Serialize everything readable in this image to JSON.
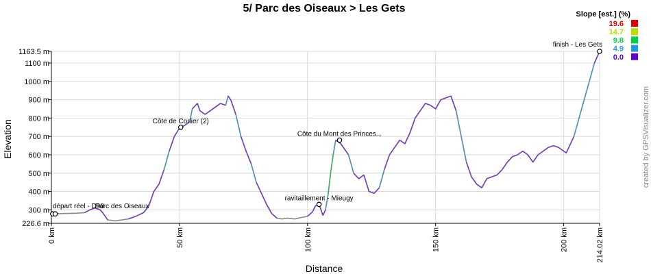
{
  "chart_data": {
    "type": "line",
    "title": "5/ Parc des Oiseaux > Les Gets",
    "xlabel": "Distance",
    "ylabel": "Elevation",
    "xlim": [
      0,
      214.02
    ],
    "ylim": [
      226.6,
      1163.5
    ],
    "x_ticks": [
      {
        "value": 0,
        "label": "0 km"
      },
      {
        "value": 50,
        "label": "50 km"
      },
      {
        "value": 100,
        "label": "100 km"
      },
      {
        "value": 150,
        "label": "150 km"
      },
      {
        "value": 200,
        "label": "200 km"
      },
      {
        "value": 214.02,
        "label": "214.02 km"
      }
    ],
    "y_ticks": [
      {
        "value": 226.6,
        "label": "226.6 m"
      },
      {
        "value": 300,
        "label": "300 m"
      },
      {
        "value": 400,
        "label": "400 m"
      },
      {
        "value": 500,
        "label": "500 m"
      },
      {
        "value": 600,
        "label": "600 m"
      },
      {
        "value": 700,
        "label": "700 m"
      },
      {
        "value": 800,
        "label": "800 m"
      },
      {
        "value": 900,
        "label": "900 m"
      },
      {
        "value": 1000,
        "label": "1000 m"
      },
      {
        "value": 1100,
        "label": "1100 m"
      },
      {
        "value": 1163.5,
        "label": "1163.5 m"
      }
    ],
    "grid": true,
    "legend": {
      "title": "Slope [est.] (%)",
      "position": "top-right",
      "entries": [
        {
          "label": "19.6",
          "color": "#dd0000"
        },
        {
          "label": "14.7",
          "color": "#bbdd00"
        },
        {
          "label": "9.8",
          "color": "#00cc44"
        },
        {
          "label": "4.9",
          "color": "#2299dd"
        },
        {
          "label": "0.0",
          "color": "#6600cc"
        }
      ]
    },
    "line_color": "#888888",
    "series": [
      {
        "x": [
          0,
          5,
          10,
          13,
          15,
          17,
          19,
          20,
          22,
          25,
          30,
          33,
          36,
          38,
          40,
          42,
          44,
          46,
          48,
          50,
          52,
          54,
          55,
          57,
          58,
          60,
          62,
          64,
          66,
          68,
          69,
          70,
          72,
          74,
          76,
          78,
          80,
          82,
          84,
          86,
          88,
          90,
          92,
          95,
          98,
          100,
          102,
          103,
          104,
          105,
          106,
          107,
          108,
          109,
          110,
          111,
          112,
          113,
          114,
          116,
          118,
          120,
          122,
          124,
          126,
          128,
          130,
          132,
          134,
          136,
          138,
          140,
          142,
          144,
          146,
          148,
          150,
          152,
          154,
          156,
          158,
          160,
          162,
          164,
          166,
          168,
          170,
          172,
          174,
          176,
          178,
          180,
          182,
          184,
          186,
          188,
          190,
          192,
          194,
          196,
          198,
          200,
          201,
          202,
          204,
          206,
          208,
          210,
          212,
          214.02
        ],
        "y": [
          278,
          280,
          282,
          285,
          300,
          310,
          300,
          285,
          245,
          240,
          250,
          265,
          285,
          320,
          400,
          440,
          520,
          620,
          700,
          745,
          760,
          780,
          850,
          880,
          840,
          820,
          840,
          860,
          880,
          870,
          920,
          900,
          820,
          700,
          620,
          550,
          450,
          390,
          330,
          280,
          255,
          250,
          255,
          250,
          260,
          265,
          290,
          320,
          330,
          310,
          270,
          300,
          380,
          500,
          600,
          680,
          670,
          660,
          640,
          600,
          500,
          470,
          490,
          400,
          390,
          420,
          520,
          600,
          640,
          680,
          660,
          720,
          800,
          840,
          880,
          870,
          850,
          900,
          910,
          920,
          840,
          700,
          560,
          480,
          440,
          420,
          470,
          480,
          490,
          520,
          560,
          590,
          600,
          620,
          600,
          560,
          600,
          620,
          640,
          650,
          640,
          620,
          610,
          640,
          700,
          800,
          900,
          1000,
          1100,
          1163.5
        ]
      }
    ],
    "waypoints": [
      {
        "x": 0.5,
        "y": 278,
        "label": "départ réel - D90"
      },
      {
        "x": 1.5,
        "y": 278,
        "label": "Parc des Oiseaux"
      },
      {
        "x": 50.5,
        "y": 750,
        "label": "Côte de Corlier (2)"
      },
      {
        "x": 104.5,
        "y": 330,
        "label": "ravitaillement - Mieugy"
      },
      {
        "x": 112.5,
        "y": 680,
        "label": "Côte du Mont des Princes..."
      },
      {
        "x": 214.02,
        "y": 1163.5,
        "label": "finish - Les Gets"
      }
    ]
  },
  "credit": "created by GPSVisualizer.com"
}
